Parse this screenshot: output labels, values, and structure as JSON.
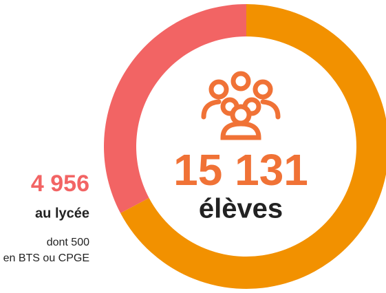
{
  "chart_data": {
    "type": "donut",
    "categories": [
      "au lycée",
      null
    ],
    "values": [
      4956,
      10175
    ],
    "value_labels": [
      "4 956",
      null
    ],
    "colors": [
      "#f26464",
      "#f29100"
    ],
    "total": 15131,
    "total_label": "15 131",
    "total_text": "élèves",
    "annotation": [
      "dont 500",
      "en BTS ou CPGE"
    ]
  }
}
